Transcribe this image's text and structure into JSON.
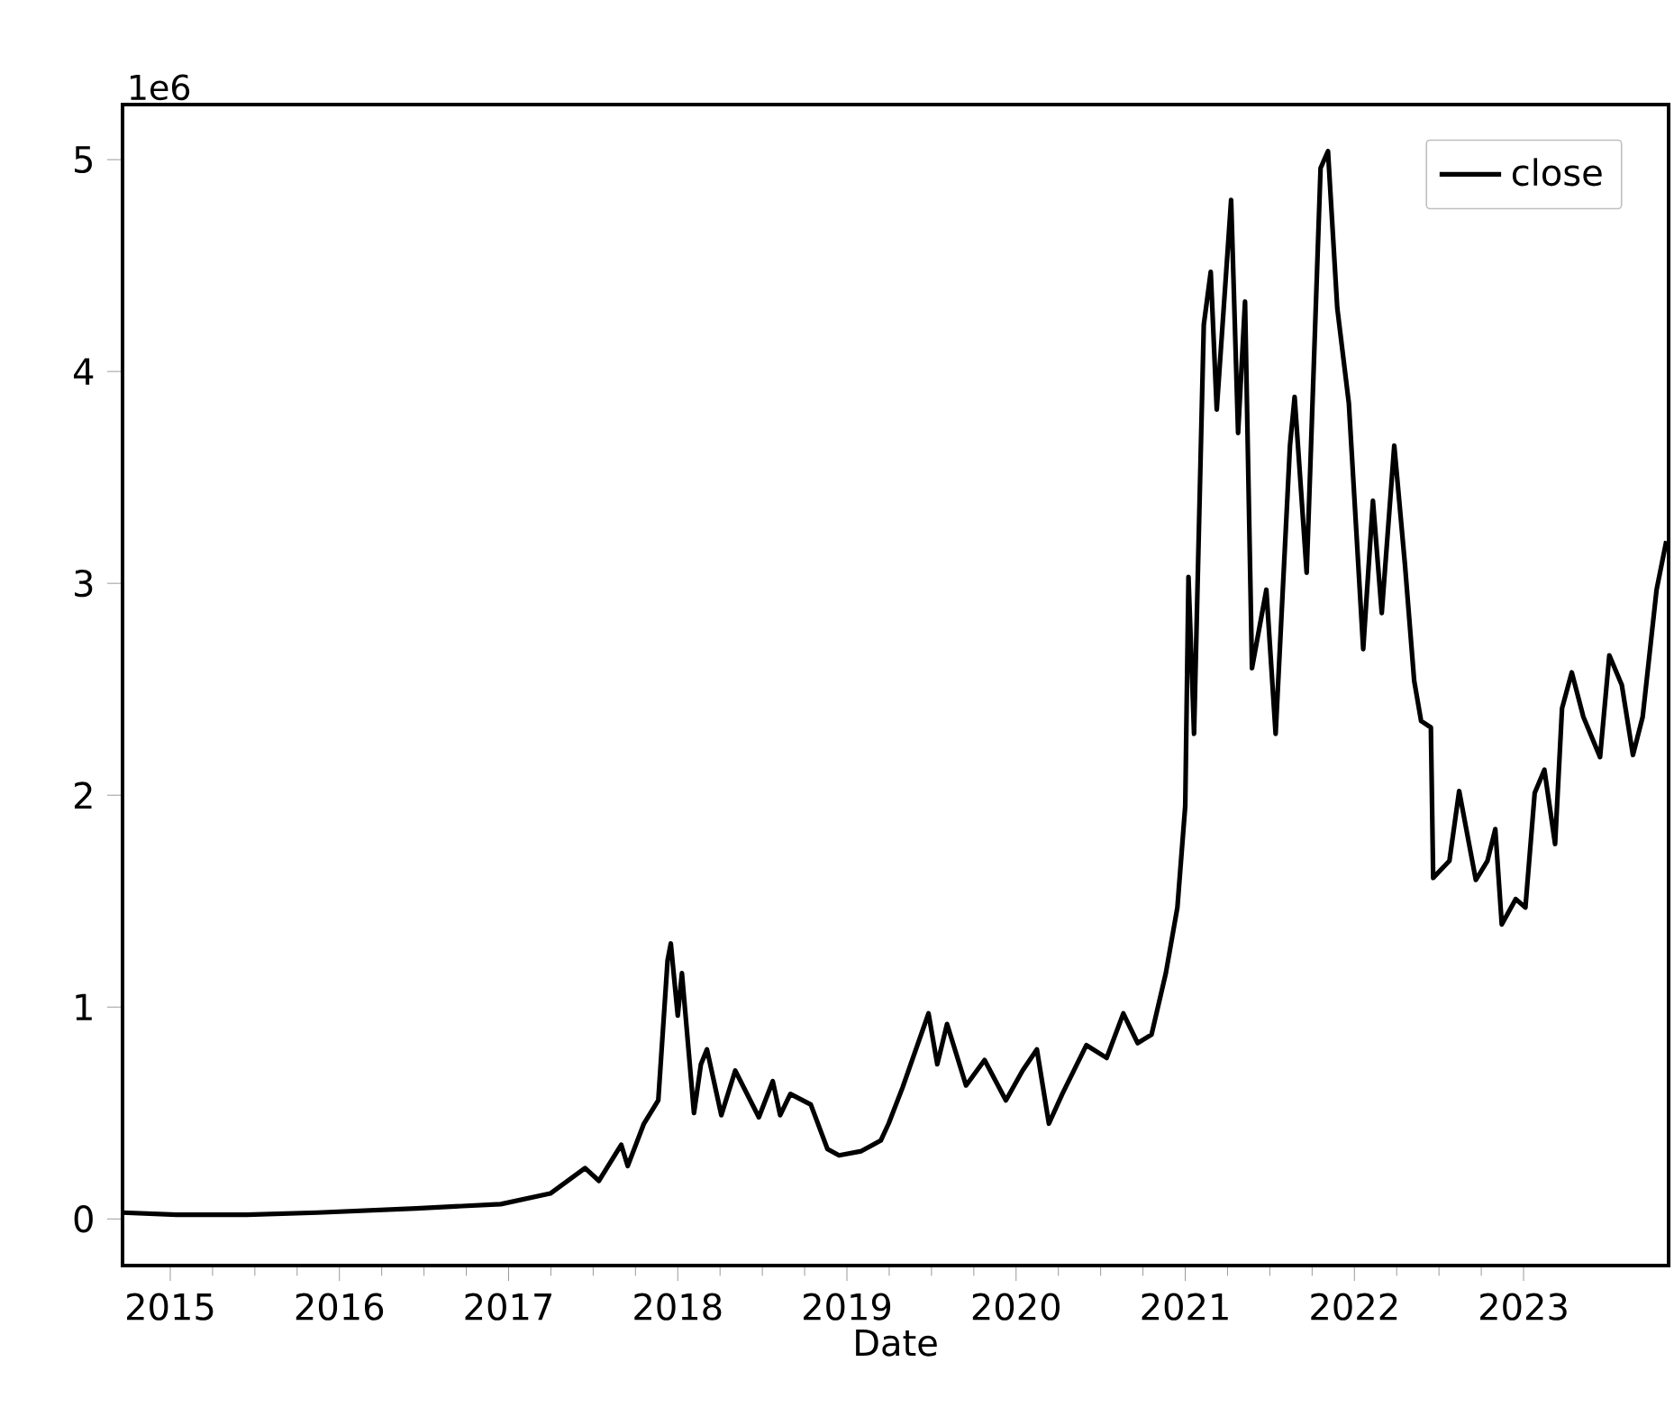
{
  "chart_data": {
    "type": "line",
    "xlabel": "Date",
    "annotations": [
      "1e6"
    ],
    "legend": "top right",
    "xlim": [
      "2014-09-20",
      "2023-11-10"
    ],
    "ylim": [
      -0.22,
      5.26
    ],
    "xticks": [
      "2015",
      "2016",
      "2017",
      "2018",
      "2019",
      "2020",
      "2021",
      "2022",
      "2023"
    ],
    "yticks": [
      0,
      1,
      2,
      3,
      4,
      5
    ],
    "x": [
      "2014-09-20",
      "2015-01-15",
      "2015-06-15",
      "2015-11-15",
      "2016-06-15",
      "2016-12-15",
      "2017-04-01",
      "2017-06-15",
      "2017-07-15",
      "2017-09-01",
      "2017-09-15",
      "2017-10-20",
      "2017-11-20",
      "2017-12-10",
      "2017-12-17",
      "2018-01-01",
      "2018-01-10",
      "2018-02-05",
      "2018-02-20",
      "2018-03-05",
      "2018-04-05",
      "2018-05-05",
      "2018-06-25",
      "2018-07-25",
      "2018-08-10",
      "2018-09-01",
      "2018-10-15",
      "2018-11-20",
      "2018-12-15",
      "2019-02-01",
      "2019-03-15",
      "2019-04-01",
      "2019-05-01",
      "2019-06-26",
      "2019-07-15",
      "2019-08-05",
      "2019-09-15",
      "2019-10-25",
      "2019-12-10",
      "2020-01-15",
      "2020-02-15",
      "2020-03-12",
      "2020-04-10",
      "2020-06-01",
      "2020-07-15",
      "2020-08-20",
      "2020-09-20",
      "2020-10-20",
      "2020-11-20",
      "2020-12-15",
      "2021-01-01",
      "2021-01-08",
      "2021-01-20",
      "2021-02-10",
      "2021-02-25",
      "2021-03-10",
      "2021-04-10",
      "2021-04-25",
      "2021-05-10",
      "2021-05-25",
      "2021-06-25",
      "2021-07-15",
      "2021-08-15",
      "2021-08-25",
      "2021-09-20",
      "2021-10-20",
      "2021-11-05",
      "2021-11-25",
      "2021-12-20",
      "2022-01-20",
      "2022-02-10",
      "2022-03-01",
      "2022-03-28",
      "2022-04-20",
      "2022-05-10",
      "2022-05-25",
      "2022-06-15",
      "2022-06-20",
      "2022-07-25",
      "2022-08-15",
      "2022-09-20",
      "2022-10-15",
      "2022-11-01",
      "2022-11-15",
      "2022-12-15",
      "2023-01-05",
      "2023-01-25",
      "2023-02-15",
      "2023-03-10",
      "2023-03-25",
      "2023-04-15",
      "2023-05-10",
      "2023-06-15",
      "2023-07-05",
      "2023-08-01",
      "2023-08-25",
      "2023-09-15",
      "2023-10-15",
      "2023-11-05"
    ],
    "series": [
      {
        "name": "close",
        "color": "#000000",
        "values": [
          0.03,
          0.02,
          0.02,
          0.03,
          0.05,
          0.07,
          0.12,
          0.24,
          0.18,
          0.35,
          0.25,
          0.45,
          0.56,
          1.22,
          1.3,
          0.96,
          1.16,
          0.5,
          0.73,
          0.8,
          0.49,
          0.7,
          0.48,
          0.65,
          0.49,
          0.59,
          0.54,
          0.33,
          0.3,
          0.32,
          0.37,
          0.45,
          0.62,
          0.97,
          0.73,
          0.92,
          0.63,
          0.75,
          0.56,
          0.7,
          0.8,
          0.45,
          0.59,
          0.82,
          0.76,
          0.97,
          0.83,
          0.87,
          1.16,
          1.47,
          1.95,
          3.03,
          2.29,
          4.22,
          4.47,
          3.82,
          4.81,
          3.71,
          4.33,
          2.6,
          2.97,
          2.29,
          3.65,
          3.88,
          3.05,
          4.96,
          5.04,
          4.3,
          3.85,
          2.69,
          3.39,
          2.86,
          3.65,
          3.09,
          2.54,
          2.35,
          2.32,
          1.61,
          1.69,
          2.02,
          1.6,
          1.69,
          1.84,
          1.39,
          1.51,
          1.47,
          2.01,
          2.12,
          1.77,
          2.41,
          2.58,
          2.37,
          2.18,
          2.66,
          2.52,
          2.19,
          2.37,
          2.97,
          3.2
        ]
      }
    ]
  }
}
